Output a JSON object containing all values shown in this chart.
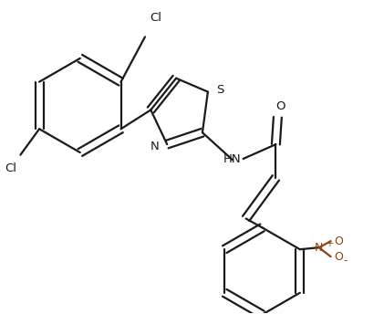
{
  "bg_color": "#ffffff",
  "line_color": "#1a1a1a",
  "no2_color": "#8B4513",
  "bond_lw": 1.6,
  "font_size": 9.5,
  "fig_width": 4.21,
  "fig_height": 3.44,
  "dpi": 100,
  "xlim": [
    0,
    4.21
  ],
  "ylim": [
    0,
    3.44
  ]
}
